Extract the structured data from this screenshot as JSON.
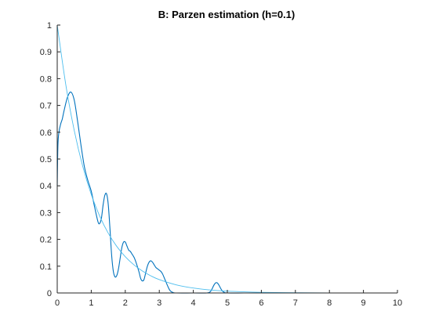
{
  "chart_data": {
    "type": "line",
    "title": "B: Parzen estimation (h=0.1)",
    "xlabel": "",
    "ylabel": "",
    "xlim": [
      0,
      10
    ],
    "ylim": [
      0,
      1
    ],
    "x_ticks": [
      "0",
      "1",
      "2",
      "3",
      "4",
      "5",
      "6",
      "7",
      "8",
      "9",
      "10"
    ],
    "y_ticks": [
      "0",
      "0.1",
      "0.2",
      "0.3",
      "0.4",
      "0.5",
      "0.6",
      "0.7",
      "0.8",
      "0.9",
      "1"
    ],
    "grid": false,
    "series": [
      {
        "color": "#0072BD",
        "x": [
          0,
          0.02,
          0.05,
          0.1,
          0.15,
          0.2,
          0.3,
          0.4,
          0.5,
          0.6,
          0.7,
          0.8,
          0.9,
          1.0,
          1.1,
          1.2,
          1.25,
          1.3,
          1.35,
          1.4,
          1.45,
          1.5,
          1.55,
          1.6,
          1.65,
          1.7,
          1.75,
          1.8,
          1.85,
          1.9,
          1.95,
          2.0,
          2.05,
          2.1,
          2.15,
          2.2,
          2.25,
          2.3,
          2.4,
          2.45,
          2.5,
          2.55,
          2.6,
          2.65,
          2.7,
          2.75,
          2.8,
          2.85,
          2.9,
          2.95,
          3.0,
          3.05,
          3.1,
          3.15,
          3.2,
          3.25,
          3.3,
          3.35,
          3.4,
          3.5,
          4.0,
          4.4,
          4.5,
          4.55,
          4.6,
          4.65,
          4.7,
          4.75,
          4.8,
          4.85,
          4.9,
          5.0,
          5.5,
          6.0,
          6.5,
          7,
          8,
          9,
          10
        ],
        "y": [
          0.4,
          0.55,
          0.6,
          0.63,
          0.65,
          0.68,
          0.73,
          0.75,
          0.72,
          0.64,
          0.55,
          0.47,
          0.42,
          0.38,
          0.32,
          0.265,
          0.26,
          0.28,
          0.33,
          0.365,
          0.37,
          0.33,
          0.24,
          0.14,
          0.08,
          0.06,
          0.065,
          0.09,
          0.13,
          0.17,
          0.19,
          0.19,
          0.175,
          0.16,
          0.155,
          0.145,
          0.135,
          0.12,
          0.08,
          0.055,
          0.045,
          0.05,
          0.075,
          0.1,
          0.115,
          0.12,
          0.115,
          0.105,
          0.095,
          0.09,
          0.085,
          0.08,
          0.07,
          0.055,
          0.04,
          0.025,
          0.012,
          0.005,
          0.002,
          0.0,
          0.0,
          0.0,
          0.005,
          0.015,
          0.028,
          0.037,
          0.038,
          0.03,
          0.018,
          0.008,
          0.003,
          0.0,
          0.0,
          0.0,
          0.0,
          0.0,
          0.0,
          0.0,
          0.0
        ]
      },
      {
        "color": "#4DBEEE",
        "function": "exp(-x)",
        "x": [
          0,
          0.25,
          0.5,
          0.75,
          1.0,
          1.25,
          1.5,
          1.75,
          2.0,
          2.25,
          2.5,
          2.75,
          3.0,
          3.5,
          4.0,
          4.5,
          5.0,
          5.5,
          6.0,
          7.0,
          8.0,
          9.0,
          10.0
        ],
        "y": [
          1.0,
          0.7788,
          0.6065,
          0.4724,
          0.3679,
          0.2865,
          0.2231,
          0.1738,
          0.1353,
          0.1054,
          0.0821,
          0.0639,
          0.0498,
          0.0302,
          0.0183,
          0.0111,
          0.0067,
          0.0041,
          0.0025,
          0.0009,
          0.0003,
          0.0001,
          0.0
        ]
      }
    ]
  }
}
